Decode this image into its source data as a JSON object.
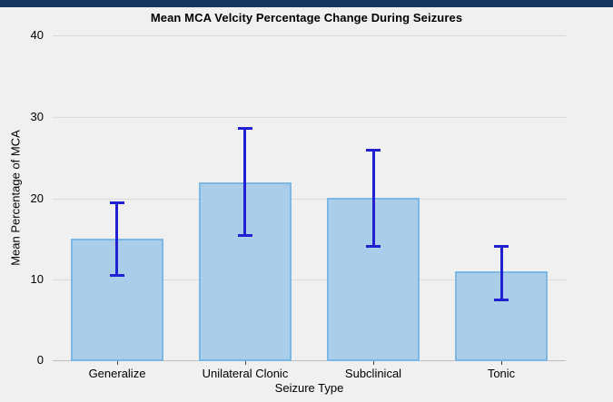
{
  "window": {
    "top_strip_color": "#17375e"
  },
  "chart_data": {
    "type": "bar",
    "title": "Mean MCA Velcity Percentage Change During Seizures",
    "xlabel": "Seizure Type",
    "ylabel": "Mean Percentage of MCA",
    "categories": [
      "Generalize",
      "Unilateral Clonic",
      "Subclinical",
      "Tonic"
    ],
    "values": [
      15,
      22,
      20,
      11
    ],
    "error_low": [
      10.5,
      15.4,
      14,
      7.5
    ],
    "error_high": [
      19.5,
      28.6,
      26,
      14.2
    ],
    "y_ticks": [
      0,
      10,
      20,
      30,
      40
    ],
    "ylim": [
      0,
      40
    ],
    "grid": "horizontal",
    "legend": "none",
    "colors": {
      "background": "#f0f0f0",
      "bar_fill": "#aacdea",
      "bar_border": "#7db7e3",
      "error_bar": "#2121d2",
      "gridline": "#d9d9d9",
      "baseline": "#bfbfbf",
      "text": "#000000"
    }
  }
}
